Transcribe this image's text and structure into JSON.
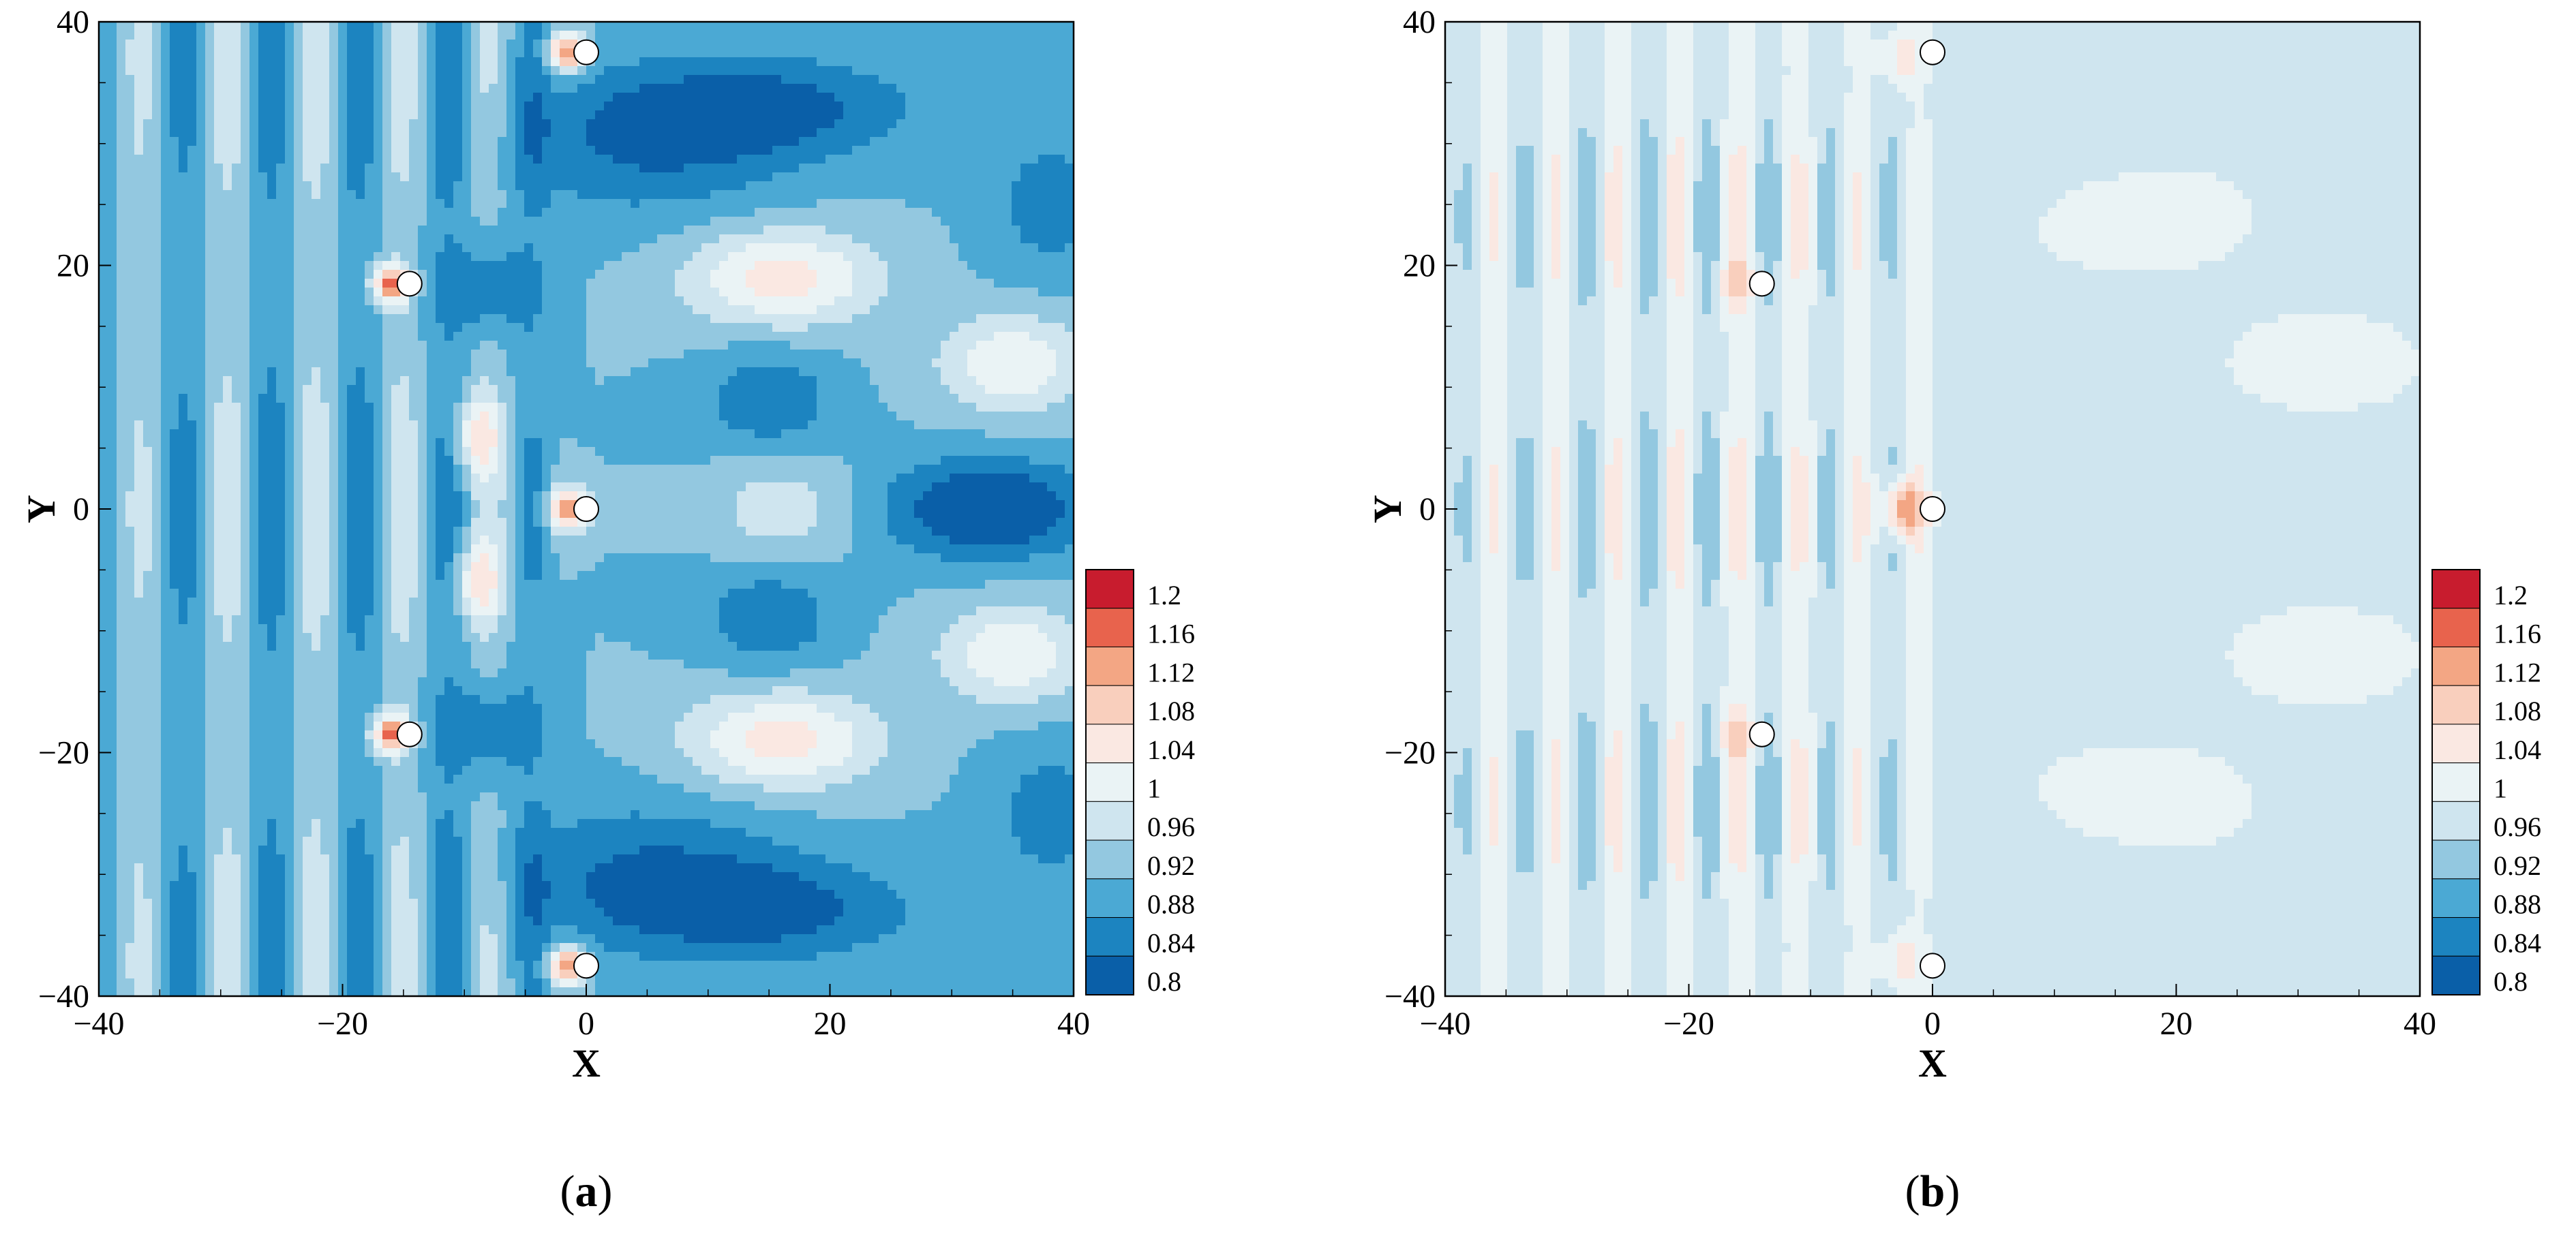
{
  "chart_data": [
    {
      "type": "contour",
      "panel_label": "(a)",
      "panel_letter": "a",
      "xlabel": "X",
      "ylabel": "Y",
      "xlim": [
        -40,
        40
      ],
      "ylim": [
        -40,
        40
      ],
      "xticks": [
        -40,
        -20,
        0,
        20,
        40
      ],
      "yticks": [
        -40,
        -20,
        0,
        20,
        40
      ],
      "xtick_labels": [
        "−40",
        "−20",
        "0",
        "20",
        "40"
      ],
      "ytick_labels": [
        "−40",
        "−20",
        "0",
        "20",
        "40"
      ],
      "cylinders": [
        {
          "x": -14.5,
          "y": 18.5
        },
        {
          "x": -14.5,
          "y": -18.5
        },
        {
          "x": 0,
          "y": 37.5
        },
        {
          "x": 0,
          "y": 0
        },
        {
          "x": 0,
          "y": -37.5
        }
      ],
      "field": {
        "base": 0.92,
        "waves": [
          {
            "x_from": -40,
            "x_to": -2,
            "amp": 0.08,
            "wavelength": 7.2,
            "phase": 0.6,
            "y_period": 37
          }
        ],
        "features": [
          {
            "x": 5,
            "y": 30,
            "sx": 12,
            "sy": 6,
            "a": -0.08
          },
          {
            "x": 5,
            "y": -30,
            "sx": 12,
            "sy": 6,
            "a": -0.08
          },
          {
            "x": 15,
            "y": 33,
            "sx": 12,
            "sy": 4,
            "a": -0.09
          },
          {
            "x": 15,
            "y": -33,
            "sx": 12,
            "sy": 4,
            "a": -0.09
          },
          {
            "x": 15,
            "y": 9,
            "sx": 5,
            "sy": 4,
            "a": -0.08
          },
          {
            "x": 15,
            "y": -9,
            "sx": 5,
            "sy": 4,
            "a": -0.08
          },
          {
            "x": 33,
            "y": 0,
            "sx": 8,
            "sy": 4,
            "a": -0.14
          },
          {
            "x": 16,
            "y": 0,
            "sx": 5,
            "sy": 4,
            "a": 0.07
          },
          {
            "x": 16,
            "y": 19,
            "sx": 8,
            "sy": 4,
            "a": 0.14
          },
          {
            "x": 16,
            "y": -19,
            "sx": 8,
            "sy": 4,
            "a": 0.14
          },
          {
            "x": 35,
            "y": 12,
            "sx": 6,
            "sy": 4,
            "a": 0.12
          },
          {
            "x": 35,
            "y": -12,
            "sx": 6,
            "sy": 4,
            "a": 0.12
          },
          {
            "x": 38,
            "y": 25,
            "sx": 5,
            "sy": 6,
            "a": -0.06
          },
          {
            "x": 38,
            "y": -25,
            "sx": 5,
            "sy": 6,
            "a": -0.06
          },
          {
            "x": -8,
            "y": 18,
            "sx": 4,
            "sy": 4,
            "a": -0.08
          },
          {
            "x": -8,
            "y": -18,
            "sx": 4,
            "sy": 4,
            "a": -0.08
          },
          {
            "x": -1.5,
            "y": 37.5,
            "sx": 1.6,
            "sy": 1.6,
            "a": 0.25
          },
          {
            "x": -1.5,
            "y": 0,
            "sx": 1.6,
            "sy": 1.6,
            "a": 0.25
          },
          {
            "x": -1.5,
            "y": -37.5,
            "sx": 1.6,
            "sy": 1.6,
            "a": 0.25
          },
          {
            "x": -16,
            "y": 18.5,
            "sx": 1.5,
            "sy": 1.5,
            "a": 0.25
          },
          {
            "x": -16,
            "y": -18.5,
            "sx": 1.5,
            "sy": 1.5,
            "a": 0.25
          },
          {
            "x": -9,
            "y": 6,
            "sx": 2,
            "sy": 3,
            "a": 0.12
          },
          {
            "x": -9,
            "y": -6,
            "sx": 2,
            "sy": 3,
            "a": 0.12
          }
        ]
      }
    },
    {
      "type": "contour",
      "panel_label": "(b)",
      "panel_letter": "b",
      "xlabel": "X",
      "ylabel": "Y",
      "xlim": [
        -40,
        40
      ],
      "ylim": [
        -40,
        40
      ],
      "xticks": [
        -40,
        -20,
        0,
        20,
        40
      ],
      "yticks": [
        -40,
        -20,
        0,
        20,
        40
      ],
      "xtick_labels": [
        "−40",
        "−20",
        "0",
        "20",
        "40"
      ],
      "ytick_labels": [
        "−40",
        "−20",
        "0",
        "20",
        "40"
      ],
      "cylinders": [
        {
          "x": -14,
          "y": 18.5
        },
        {
          "x": -14,
          "y": -18.5
        },
        {
          "x": 0,
          "y": 37.5
        },
        {
          "x": 0,
          "y": 0
        },
        {
          "x": 0,
          "y": -37.5
        }
      ],
      "field": {
        "base": 0.995,
        "waves": [
          {
            "x_from": -40,
            "x_to": 0,
            "amp": 0.075,
            "wavelength": 5.0,
            "phase": 1.2,
            "y_period": 24
          }
        ],
        "features": [
          {
            "x": 15,
            "y": 11,
            "sx": 5,
            "sy": 4,
            "a": -0.03
          },
          {
            "x": 15,
            "y": -11,
            "sx": 5,
            "sy": 4,
            "a": -0.03
          },
          {
            "x": 33,
            "y": 0,
            "sx": 8,
            "sy": 4,
            "a": -0.03
          },
          {
            "x": 17,
            "y": 24,
            "sx": 8,
            "sy": 4,
            "a": 0.02
          },
          {
            "x": 17,
            "y": -24,
            "sx": 8,
            "sy": 4,
            "a": 0.02
          },
          {
            "x": 32,
            "y": 12,
            "sx": 6,
            "sy": 3,
            "a": 0.03
          },
          {
            "x": 32,
            "y": -12,
            "sx": 6,
            "sy": 3,
            "a": 0.03
          },
          {
            "x": 8,
            "y": 33,
            "sx": 10,
            "sy": 6,
            "a": -0.02
          },
          {
            "x": 8,
            "y": -33,
            "sx": 10,
            "sy": 6,
            "a": -0.02
          },
          {
            "x": -2.5,
            "y": 0,
            "sx": 1.6,
            "sy": 2.2,
            "a": 0.16
          },
          {
            "x": -2.5,
            "y": 37,
            "sx": 1.6,
            "sy": 2.2,
            "a": 0.08
          },
          {
            "x": -2.5,
            "y": -37,
            "sx": 1.6,
            "sy": 2.2,
            "a": 0.08
          },
          {
            "x": -16,
            "y": 18.5,
            "sx": 1.4,
            "sy": 2,
            "a": 0.08
          },
          {
            "x": -16,
            "y": -18.5,
            "sx": 1.4,
            "sy": 2,
            "a": 0.08
          }
        ]
      }
    }
  ],
  "colorbar": {
    "levels": [
      0.8,
      0.84,
      0.88,
      0.92,
      0.96,
      1,
      1.04,
      1.08,
      1.12,
      1.16,
      1.2
    ],
    "labels": [
      "1.2",
      "1.16",
      "1.12",
      "1.08",
      "1.04",
      "1",
      "0.96",
      "0.92",
      "0.88",
      "0.84",
      "0.8"
    ],
    "colors": [
      "#0a5fa8",
      "#1c84c0",
      "#4ba9d4",
      "#93c8e0",
      "#cfe5ef",
      "#eaf3f5",
      "#fae8e2",
      "#f9cfbd",
      "#f3a684",
      "#e8634d",
      "#c81c2e"
    ]
  }
}
